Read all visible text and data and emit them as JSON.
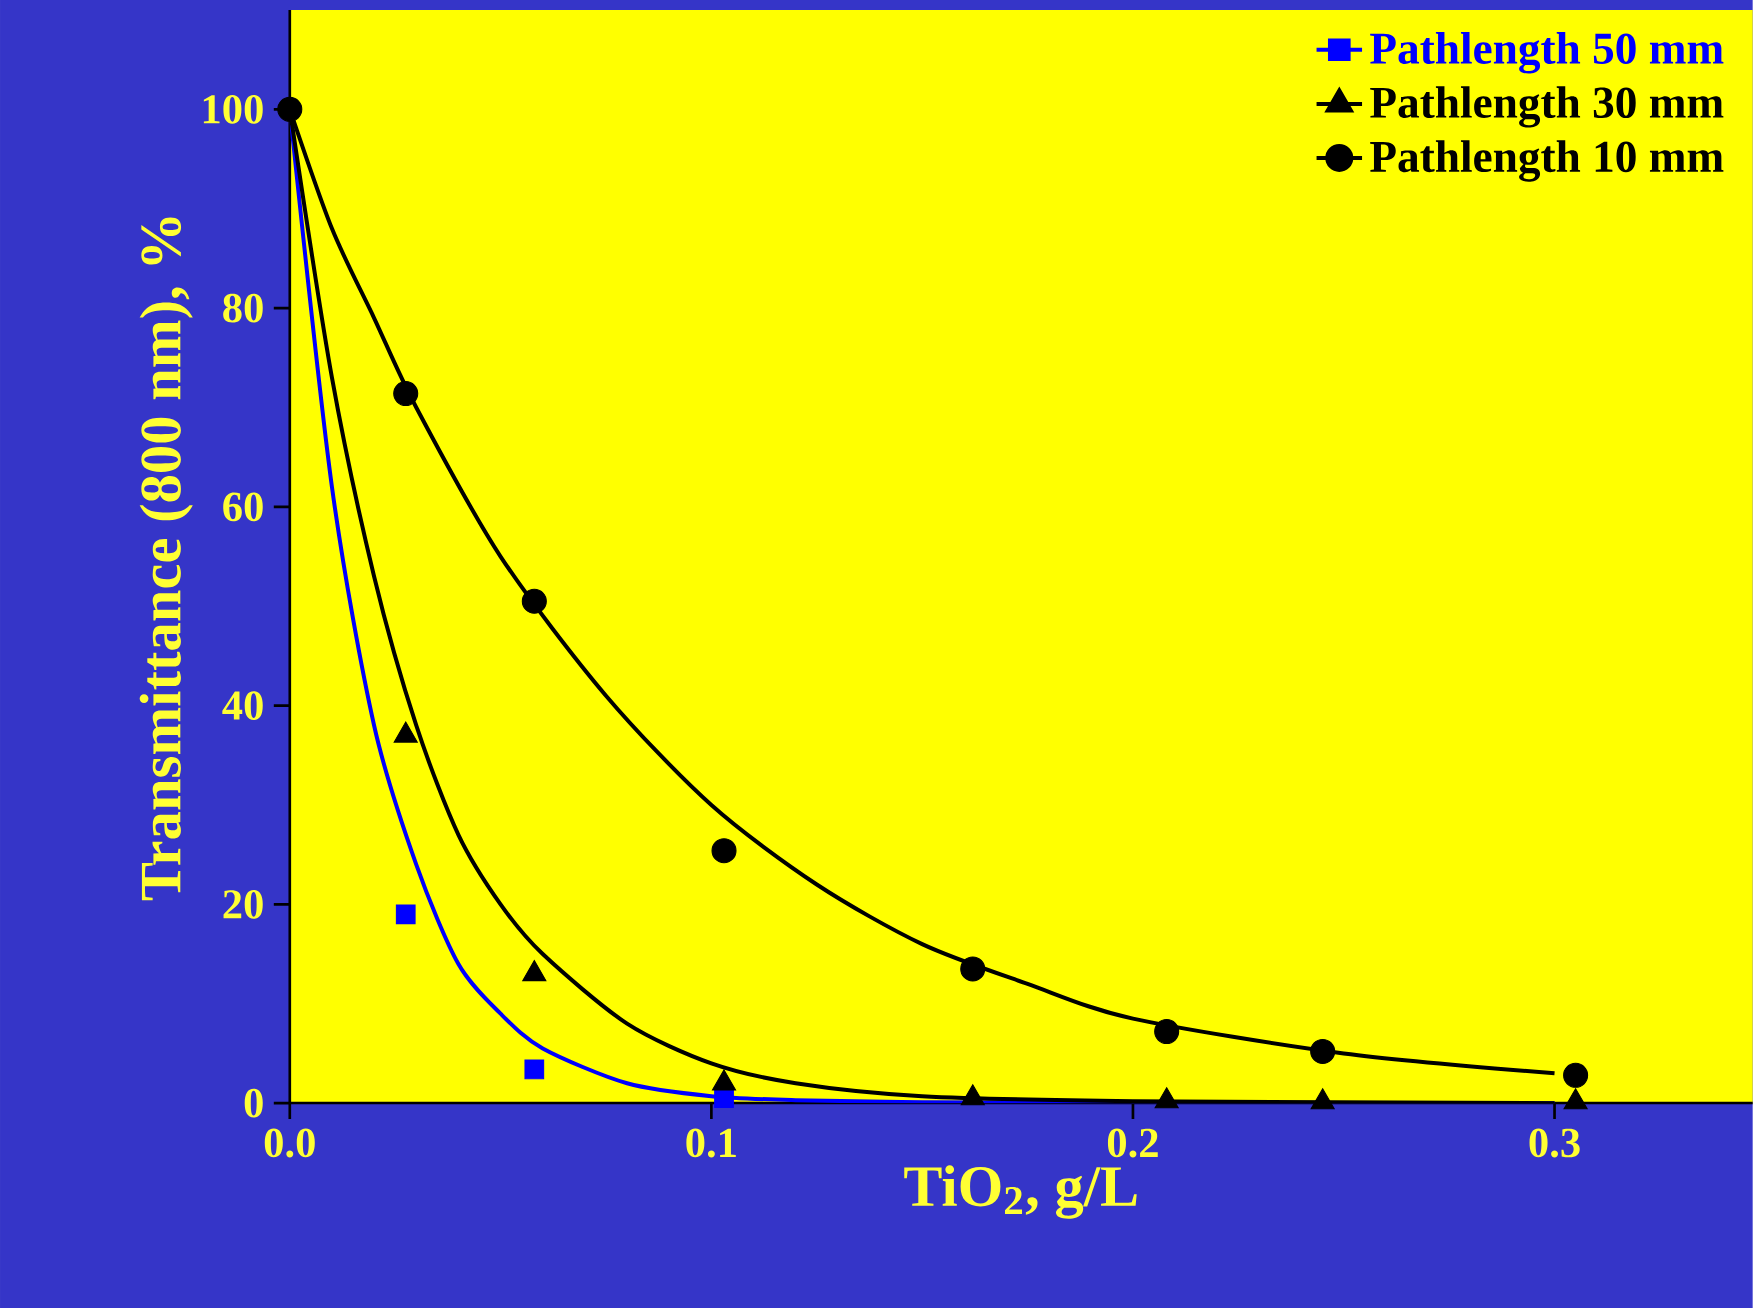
{
  "chart_data": {
    "type": "scatter",
    "xlabel": "TiO$_{2}$, g/L",
    "ylabel": "Transmittance (800 nm), %",
    "xlim": [
      0,
      0.347
    ],
    "ylim": [
      0,
      110
    ],
    "xticks": [
      {
        "value": 0,
        "label": "0.0"
      },
      {
        "value": 0.1,
        "label": "0.1"
      },
      {
        "value": 0.2,
        "label": "0.2"
      },
      {
        "value": 0.3,
        "label": "0.3"
      }
    ],
    "yticks": [
      0,
      20,
      40,
      60,
      80,
      100
    ],
    "grid": false,
    "legend": "top right",
    "series": [
      {
        "name": "Pathlength 50 mm",
        "color": "#0000ff",
        "marker": "square",
        "x": [
          0.0275,
          0.058,
          0.103
        ],
        "values": [
          19,
          3.4,
          0.5
        ]
      },
      {
        "name": "Pathlength 30 mm",
        "color": "#000000",
        "marker": "triangle",
        "x": [
          0.0275,
          0.058,
          0.103,
          0.162,
          0.208,
          0.245,
          0.305
        ],
        "values": [
          37,
          13,
          2,
          0.5,
          0.2,
          0.1,
          0.1
        ]
      },
      {
        "name": "Pathlength 10 mm",
        "color": "#000000",
        "marker": "circle",
        "x": [
          0,
          0.0275,
          0.058,
          0.103,
          0.162,
          0.208,
          0.245,
          0.305
        ],
        "values": [
          100,
          71.4,
          50.5,
          25.4,
          13.5,
          7.2,
          5.2,
          2.8
        ]
      },
      {
        "type": "line",
        "color": "#0000ff",
        "x": [
          0,
          0.01,
          0.02,
          0.03,
          0.04,
          0.05,
          0.06,
          0.08,
          0.1,
          0.12,
          0.15,
          0.2,
          0.3
        ],
        "values": [
          100,
          62,
          38,
          24,
          14,
          9,
          5.5,
          2,
          0.7,
          0.3,
          0.1,
          0,
          0
        ]
      },
      {
        "type": "line",
        "color": "#000000",
        "x": [
          0,
          0.01,
          0.02,
          0.03,
          0.04,
          0.05,
          0.06,
          0.08,
          0.1,
          0.12,
          0.15,
          0.2,
          0.3
        ],
        "values": [
          100,
          73,
          53,
          38,
          27,
          20,
          15,
          8,
          4,
          2,
          0.7,
          0.2,
          0
        ]
      },
      {
        "type": "line",
        "color": "#000000",
        "x": [
          0,
          0.01,
          0.02,
          0.03,
          0.05,
          0.075,
          0.1,
          0.125,
          0.15,
          0.175,
          0.2,
          0.25,
          0.3
        ],
        "values": [
          100,
          88,
          79,
          70,
          55,
          41,
          30,
          22,
          16,
          12,
          8.5,
          5,
          3
        ]
      }
    ]
  }
}
